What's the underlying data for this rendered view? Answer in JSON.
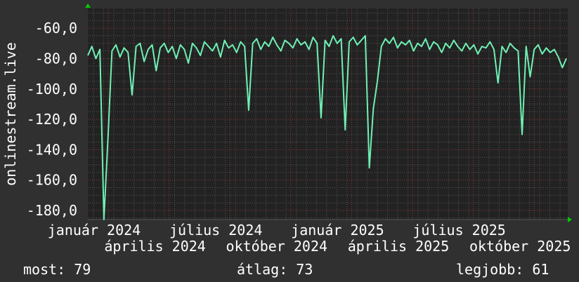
{
  "chart_data": {
    "type": "line",
    "ylabel": "onlinestream.live",
    "ylim": [
      -186,
      -47
    ],
    "yticks": [
      -60,
      -80,
      -100,
      -120,
      -140,
      -160,
      -180
    ],
    "ytick_labels": [
      "-60,0",
      "-80,0",
      "-100,0",
      "-120,0",
      "-140,0",
      "-160,0",
      "-180,0"
    ],
    "xtick_labels": [
      "január 2024",
      "április 2024",
      "július 2024",
      "október 2024",
      "január 2025",
      "április 2025",
      "július 2025",
      "október 2025"
    ],
    "grid": true,
    "colors": {
      "line": "#6ff0b4",
      "background": "#303030",
      "plot_background": "#222222",
      "major_grid": "#8a3a3a",
      "minor_grid": "#555555",
      "axis_arrow": "#00cc00"
    },
    "values": [
      -78,
      -72,
      -80,
      -74,
      -186,
      -133,
      -75,
      -71,
      -79,
      -73,
      -76,
      -104,
      -72,
      -70,
      -82,
      -74,
      -71,
      -88,
      -73,
      -70,
      -76,
      -72,
      -80,
      -71,
      -74,
      -83,
      -70,
      -73,
      -78,
      -69,
      -72,
      -75,
      -70,
      -79,
      -68,
      -73,
      -71,
      -76,
      -69,
      -72,
      -114,
      -70,
      -67,
      -74,
      -69,
      -72,
      -66,
      -71,
      -75,
      -68,
      -70,
      -73,
      -67,
      -71,
      -69,
      -74,
      -66,
      -70,
      -119,
      -68,
      -72,
      -65,
      -70,
      -67,
      -127,
      -69,
      -66,
      -71,
      -68,
      -65,
      -152,
      -113,
      -95,
      -72,
      -67,
      -70,
      -66,
      -73,
      -69,
      -71,
      -68,
      -75,
      -70,
      -72,
      -67,
      -74,
      -69,
      -71,
      -76,
      -70,
      -73,
      -68,
      -72,
      -75,
      -70,
      -74,
      -71,
      -77,
      -72,
      -73,
      -69,
      -74,
      -96,
      -72,
      -76,
      -70,
      -73,
      -75,
      -130,
      -72,
      -92,
      -74,
      -71,
      -77,
      -73,
      -76,
      -74,
      -79,
      -86,
      -80
    ],
    "stats": {
      "current_label": "most:",
      "current": 79,
      "average_label": "átlag:",
      "average": 73,
      "best_label": "legjobb:",
      "best": 61
    }
  }
}
